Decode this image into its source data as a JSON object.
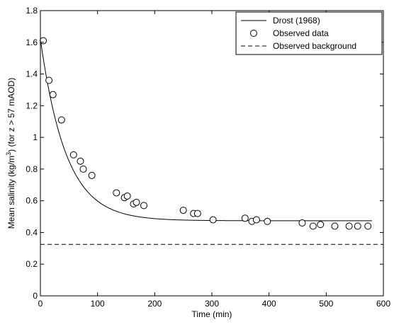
{
  "chart_data": {
    "type": "scatter",
    "xlabel": "Time (min)",
    "ylabel_parts": {
      "before": "Mean salinity (kg/m",
      "superscript": "3",
      "after": ") (for z > 57 mAOD)"
    },
    "xlim": [
      0,
      600
    ],
    "ylim": [
      0,
      1.8
    ],
    "x_ticks": [
      0,
      100,
      200,
      300,
      400,
      500,
      600
    ],
    "y_ticks": [
      0,
      0.2,
      0.4,
      0.6,
      0.8,
      1,
      1.2,
      1.4,
      1.6,
      1.8
    ],
    "grid": false,
    "legend_position": "top-right",
    "series": [
      {
        "name": "Drost (1968)",
        "style": "solid-line",
        "model": {
          "form": "exponential-decay",
          "y0": 1.62,
          "asymptote": 0.474,
          "time_constant_min": 45
        }
      },
      {
        "name": "Observed data",
        "style": "open-circle",
        "points": [
          [
            5,
            1.61
          ],
          [
            15,
            1.36
          ],
          [
            22,
            1.27
          ],
          [
            37,
            1.11
          ],
          [
            58,
            0.89
          ],
          [
            70,
            0.85
          ],
          [
            75,
            0.8
          ],
          [
            90,
            0.76
          ],
          [
            133,
            0.65
          ],
          [
            147,
            0.62
          ],
          [
            152,
            0.63
          ],
          [
            163,
            0.58
          ],
          [
            168,
            0.59
          ],
          [
            181,
            0.57
          ],
          [
            250,
            0.54
          ],
          [
            268,
            0.52
          ],
          [
            275,
            0.52
          ],
          [
            302,
            0.48
          ],
          [
            358,
            0.49
          ],
          [
            370,
            0.47
          ],
          [
            378,
            0.48
          ],
          [
            397,
            0.47
          ],
          [
            458,
            0.46
          ],
          [
            477,
            0.44
          ],
          [
            490,
            0.45
          ],
          [
            515,
            0.44
          ],
          [
            540,
            0.44
          ],
          [
            555,
            0.44
          ],
          [
            573,
            0.44
          ]
        ]
      },
      {
        "name": "Observed background",
        "style": "dashed-line",
        "value": 0.325
      }
    ]
  }
}
